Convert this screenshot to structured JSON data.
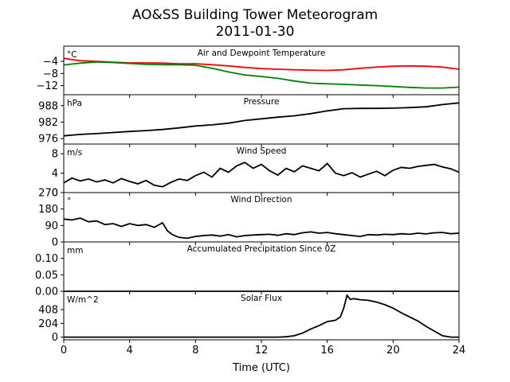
{
  "title_line1": "AO&SS Building Tower Meteorogram",
  "title_line2": "2011-01-30",
  "colors": {
    "temperature": "#ff0000",
    "dewpoint": "#008000",
    "line": "#000000"
  },
  "chart_data": {
    "type": "line",
    "xlabel": "Time (UTC)",
    "xlim": [
      0,
      24
    ],
    "xticks": [
      0,
      4,
      8,
      12,
      16,
      20,
      24
    ],
    "panels": [
      {
        "title": "Air and Dewpoint Temperature",
        "unit": "°C",
        "ylim": [
          -15,
          1
        ],
        "yticks": [
          -12,
          -8,
          -4
        ],
        "series": [
          {
            "color": "#ff0000",
            "x": [
              0,
              1,
              2,
              3,
              4,
              5,
              6,
              7,
              8,
              9,
              10,
              11,
              12,
              13,
              14,
              15,
              16,
              17,
              18,
              19,
              20,
              21,
              22,
              23,
              24
            ],
            "y": [
              -3.0,
              -3.8,
              -4.0,
              -4.3,
              -4.5,
              -4.5,
              -4.6,
              -4.8,
              -4.8,
              -5.1,
              -5.5,
              -6.0,
              -6.4,
              -6.6,
              -6.8,
              -6.9,
              -7.0,
              -6.8,
              -6.3,
              -5.9,
              -5.6,
              -5.5,
              -5.6,
              -5.9,
              -6.6
            ]
          },
          {
            "color": "#008000",
            "x": [
              0,
              1,
              2,
              3,
              4,
              5,
              6,
              7,
              8,
              9,
              10,
              11,
              12,
              13,
              14,
              15,
              16,
              17,
              18,
              19,
              20,
              21,
              22,
              23,
              24
            ],
            "y": [
              -5.2,
              -4.6,
              -4.2,
              -4.4,
              -4.7,
              -5.0,
              -5.1,
              -5.1,
              -5.3,
              -6.3,
              -7.5,
              -8.5,
              -9.0,
              -9.6,
              -10.5,
              -11.2,
              -11.4,
              -11.6,
              -11.8,
              -12.0,
              -12.3,
              -12.6,
              -12.8,
              -12.8,
              -12.5
            ]
          }
        ]
      },
      {
        "title": "Pressure",
        "unit": "hPa",
        "ylim": [
          974,
          992
        ],
        "yticks": [
          976,
          982,
          988
        ],
        "series": [
          {
            "color": "#000000",
            "x": [
              0,
              1,
              2,
              3,
              4,
              5,
              6,
              7,
              8,
              9,
              10,
              11,
              12,
              13,
              14,
              15,
              16,
              17,
              18,
              19,
              20,
              21,
              22,
              23,
              24
            ],
            "y": [
              977.0,
              977.5,
              977.8,
              978.2,
              978.6,
              978.9,
              979.3,
              979.9,
              980.6,
              981.0,
              981.6,
              982.6,
              983.2,
              983.8,
              984.3,
              985.1,
              986.1,
              986.9,
              987.0,
              987.0,
              987.1,
              987.3,
              987.6,
              988.4,
              989.0
            ]
          }
        ]
      },
      {
        "title": "Wind Speed",
        "unit": "m/s",
        "ylim": [
          0,
          10
        ],
        "yticks": [
          0,
          4,
          8
        ],
        "series": [
          {
            "color": "#000000",
            "x": [
              0,
              0.5,
              1,
              1.5,
              2,
              2.5,
              3,
              3.5,
              4,
              4.5,
              5,
              5.5,
              6,
              6.5,
              7,
              7.5,
              8,
              8.5,
              9,
              9.5,
              10,
              10.5,
              11,
              11.5,
              12,
              12.5,
              13,
              13.5,
              14,
              14.5,
              15,
              15.5,
              16,
              16.5,
              17,
              17.5,
              18,
              18.5,
              19,
              19.5,
              20,
              20.5,
              21,
              21.5,
              22,
              22.5,
              23,
              23.5,
              24
            ],
            "y": [
              2.0,
              3.0,
              2.4,
              2.8,
              2.2,
              2.6,
              2.0,
              2.9,
              2.3,
              1.8,
              2.5,
              1.5,
              1.2,
              2.1,
              2.8,
              2.5,
              3.5,
              4.2,
              3.2,
              5.0,
              4.2,
              5.5,
              6.2,
              5.0,
              5.8,
              4.5,
              3.6,
              5.0,
              4.3,
              5.5,
              5.0,
              4.5,
              6.0,
              4.0,
              3.5,
              4.1,
              3.2,
              3.8,
              4.4,
              3.5,
              4.6,
              5.2,
              5.0,
              5.4,
              5.6,
              5.8,
              5.3,
              4.9,
              4.2
            ]
          }
        ]
      },
      {
        "title": "Wind Direction",
        "unit": "°",
        "ylim": [
          0,
          270
        ],
        "yticks": [
          0,
          90,
          180,
          270
        ],
        "series": [
          {
            "color": "#000000",
            "x": [
              0,
              0.5,
              1,
              1.5,
              2,
              2.5,
              3,
              3.5,
              4,
              4.5,
              5,
              5.5,
              6,
              6.3,
              6.6,
              7,
              7.5,
              8,
              8.5,
              9,
              9.5,
              10,
              10.5,
              11,
              11.5,
              12,
              12.5,
              13,
              13.5,
              14,
              14.5,
              15,
              15.5,
              16,
              16.5,
              17,
              17.5,
              18,
              18.5,
              19,
              19.5,
              20,
              20.5,
              21,
              21.5,
              22,
              22.5,
              23,
              23.5,
              24
            ],
            "y": [
              125,
              120,
              130,
              110,
              115,
              95,
              100,
              85,
              100,
              90,
              95,
              80,
              105,
              60,
              40,
              25,
              20,
              30,
              35,
              38,
              32,
              40,
              28,
              35,
              38,
              40,
              42,
              36,
              45,
              40,
              50,
              55,
              48,
              52,
              45,
              40,
              35,
              30,
              40,
              38,
              42,
              40,
              45,
              42,
              48,
              44,
              50,
              52,
              45,
              48
            ]
          }
        ]
      },
      {
        "title": "Accumulated Precipitation Since 0Z",
        "unit": "mm",
        "ylim": [
          0,
          0.15
        ],
        "yticks": [
          0.0,
          0.05,
          0.1
        ],
        "series": [
          {
            "color": "#000000",
            "x": [
              0,
              24
            ],
            "y": [
              0,
              0
            ]
          }
        ]
      },
      {
        "title": "Solar Flux",
        "unit": "W/m^2",
        "ylim": [
          -40,
          680
        ],
        "yticks": [
          0,
          204,
          408
        ],
        "series": [
          {
            "color": "#000000",
            "x": [
              0,
              13,
              13.5,
              14,
              14.5,
              15,
              15.5,
              16,
              16.5,
              16.8,
              17,
              17.2,
              17.4,
              17.6,
              18,
              18.5,
              19,
              19.5,
              20,
              20.5,
              21,
              21.5,
              22,
              22.5,
              23,
              23.5,
              24
            ],
            "y": [
              0,
              0,
              5,
              20,
              60,
              120,
              170,
              230,
              250,
              300,
              430,
              620,
              560,
              570,
              555,
              545,
              520,
              480,
              430,
              360,
              300,
              240,
              160,
              90,
              20,
              0,
              0
            ]
          }
        ]
      }
    ]
  }
}
